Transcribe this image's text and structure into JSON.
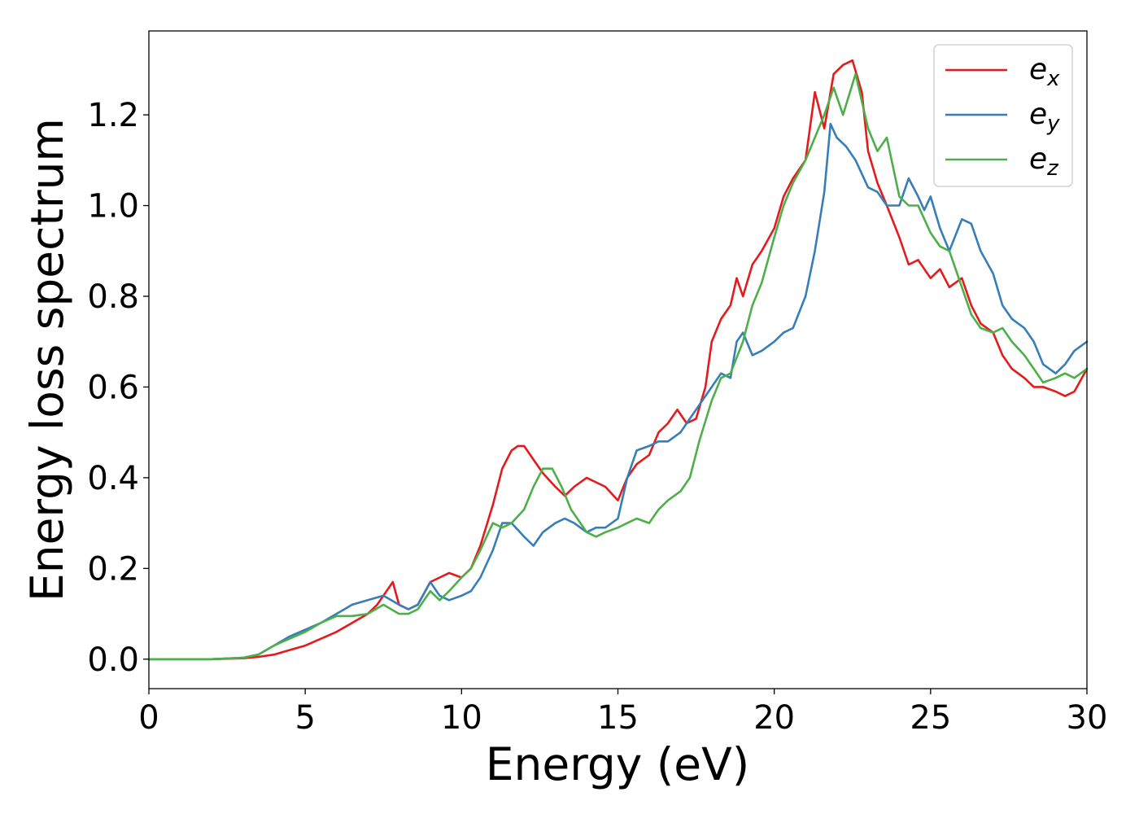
{
  "chart_data": {
    "type": "line",
    "title": "",
    "xlabel": "Energy (eV)",
    "ylabel": "Energy loss spectrum",
    "xlim": [
      0,
      30
    ],
    "ylim": [
      -0.065,
      1.385
    ],
    "xticks": [
      "0",
      "5",
      "10",
      "15",
      "20",
      "25",
      "30"
    ],
    "yticks": [
      "0.0",
      "0.2",
      "0.4",
      "0.6",
      "0.8",
      "1.0",
      "1.2"
    ],
    "grid": false,
    "legend": "top-right",
    "series": [
      {
        "name": "ex",
        "legend_base": "e",
        "legend_sub": "x",
        "color": "#e41a1c",
        "x": [
          0,
          1,
          2,
          3,
          3.5,
          4,
          4.5,
          5,
          5.5,
          6,
          6.5,
          7,
          7.3,
          7.6,
          7.8,
          8,
          8.3,
          8.6,
          9,
          9.3,
          9.6,
          10,
          10.3,
          10.6,
          11,
          11.3,
          11.6,
          11.8,
          12,
          12.3,
          12.6,
          13,
          13.3,
          13.6,
          14,
          14.3,
          14.6,
          15,
          15.3,
          15.6,
          16,
          16.3,
          16.6,
          16.9,
          17.2,
          17.5,
          17.8,
          18,
          18.3,
          18.6,
          18.8,
          19,
          19.3,
          19.6,
          20,
          20.3,
          20.6,
          21,
          21.3,
          21.6,
          21.9,
          22.2,
          22.5,
          22.8,
          23,
          23.3,
          23.6,
          24,
          24.3,
          24.6,
          25,
          25.3,
          25.6,
          26,
          26.3,
          26.6,
          27,
          27.3,
          27.6,
          28,
          28.3,
          28.6,
          29,
          29.3,
          29.6,
          30
        ],
        "y": [
          0,
          0,
          0,
          0.002,
          0.005,
          0.01,
          0.02,
          0.03,
          0.045,
          0.06,
          0.08,
          0.1,
          0.12,
          0.15,
          0.17,
          0.12,
          0.11,
          0.12,
          0.17,
          0.18,
          0.19,
          0.18,
          0.2,
          0.25,
          0.34,
          0.42,
          0.46,
          0.47,
          0.47,
          0.44,
          0.41,
          0.38,
          0.36,
          0.38,
          0.4,
          0.39,
          0.38,
          0.35,
          0.4,
          0.43,
          0.45,
          0.5,
          0.52,
          0.55,
          0.52,
          0.53,
          0.6,
          0.7,
          0.75,
          0.78,
          0.84,
          0.8,
          0.87,
          0.9,
          0.95,
          1.02,
          1.06,
          1.1,
          1.25,
          1.17,
          1.29,
          1.31,
          1.32,
          1.25,
          1.12,
          1.05,
          1.0,
          0.93,
          0.87,
          0.88,
          0.84,
          0.86,
          0.82,
          0.84,
          0.78,
          0.74,
          0.72,
          0.67,
          0.64,
          0.62,
          0.6,
          0.6,
          0.59,
          0.58,
          0.59,
          0.64
        ]
      },
      {
        "name": "ey",
        "legend_base": "e",
        "legend_sub": "y",
        "color": "#377eb8",
        "x": [
          0,
          1,
          2,
          3,
          3.5,
          4,
          4.5,
          5,
          5.5,
          6,
          6.5,
          7,
          7.5,
          8,
          8.3,
          8.6,
          9,
          9.3,
          9.6,
          10,
          10.3,
          10.6,
          11,
          11.3,
          11.6,
          12,
          12.3,
          12.6,
          13,
          13.3,
          13.6,
          14,
          14.3,
          14.6,
          15,
          15.3,
          15.6,
          16,
          16.3,
          16.6,
          17,
          17.3,
          17.6,
          18,
          18.3,
          18.6,
          18.8,
          19,
          19.3,
          19.6,
          20,
          20.3,
          20.6,
          21,
          21.3,
          21.6,
          21.8,
          22,
          22.3,
          22.6,
          23,
          23.3,
          23.6,
          24,
          24.3,
          24.6,
          24.8,
          25,
          25.3,
          25.6,
          26,
          26.3,
          26.6,
          27,
          27.3,
          27.6,
          28,
          28.3,
          28.6,
          29,
          29.3,
          29.6,
          30
        ],
        "y": [
          0,
          0,
          0,
          0.003,
          0.01,
          0.03,
          0.05,
          0.065,
          0.08,
          0.1,
          0.12,
          0.13,
          0.14,
          0.12,
          0.11,
          0.12,
          0.17,
          0.14,
          0.13,
          0.14,
          0.15,
          0.18,
          0.24,
          0.3,
          0.3,
          0.27,
          0.25,
          0.28,
          0.3,
          0.31,
          0.3,
          0.28,
          0.29,
          0.29,
          0.31,
          0.4,
          0.46,
          0.47,
          0.48,
          0.48,
          0.5,
          0.53,
          0.56,
          0.6,
          0.63,
          0.62,
          0.7,
          0.72,
          0.67,
          0.68,
          0.7,
          0.72,
          0.73,
          0.8,
          0.9,
          1.03,
          1.18,
          1.15,
          1.13,
          1.1,
          1.04,
          1.03,
          1.0,
          1.0,
          1.06,
          1.02,
          0.99,
          1.02,
          0.95,
          0.9,
          0.97,
          0.96,
          0.9,
          0.85,
          0.78,
          0.75,
          0.73,
          0.7,
          0.65,
          0.63,
          0.65,
          0.68,
          0.7
        ]
      },
      {
        "name": "ez",
        "legend_base": "e",
        "legend_sub": "z",
        "color": "#4daf4a",
        "x": [
          0,
          1,
          2,
          3,
          3.5,
          4,
          4.5,
          5,
          5.5,
          6,
          6.5,
          7,
          7.5,
          8,
          8.3,
          8.6,
          9,
          9.3,
          9.6,
          10,
          10.3,
          10.6,
          11,
          11.3,
          11.6,
          12,
          12.3,
          12.6,
          12.9,
          13.2,
          13.5,
          14,
          14.3,
          14.6,
          15,
          15.3,
          15.6,
          16,
          16.3,
          16.6,
          17,
          17.3,
          17.6,
          18,
          18.3,
          18.6,
          19,
          19.3,
          19.6,
          20,
          20.3,
          20.6,
          21,
          21.3,
          21.6,
          21.9,
          22.2,
          22.6,
          23,
          23.3,
          23.6,
          24,
          24.3,
          24.6,
          25,
          25.3,
          25.6,
          26,
          26.3,
          26.6,
          27,
          27.3,
          27.6,
          28,
          28.3,
          28.6,
          29,
          29.3,
          29.6,
          30
        ],
        "y": [
          0,
          0,
          0,
          0.003,
          0.01,
          0.03,
          0.045,
          0.06,
          0.08,
          0.095,
          0.095,
          0.1,
          0.12,
          0.1,
          0.1,
          0.11,
          0.15,
          0.13,
          0.15,
          0.18,
          0.2,
          0.24,
          0.3,
          0.29,
          0.3,
          0.33,
          0.38,
          0.42,
          0.42,
          0.38,
          0.33,
          0.28,
          0.27,
          0.28,
          0.29,
          0.3,
          0.31,
          0.3,
          0.33,
          0.35,
          0.37,
          0.4,
          0.48,
          0.57,
          0.62,
          0.63,
          0.7,
          0.78,
          0.83,
          0.93,
          1.0,
          1.05,
          1.1,
          1.15,
          1.2,
          1.26,
          1.2,
          1.29,
          1.17,
          1.12,
          1.15,
          1.02,
          1.0,
          1.0,
          0.94,
          0.91,
          0.9,
          0.82,
          0.76,
          0.73,
          0.72,
          0.73,
          0.7,
          0.67,
          0.64,
          0.61,
          0.62,
          0.63,
          0.62,
          0.64
        ]
      }
    ]
  }
}
